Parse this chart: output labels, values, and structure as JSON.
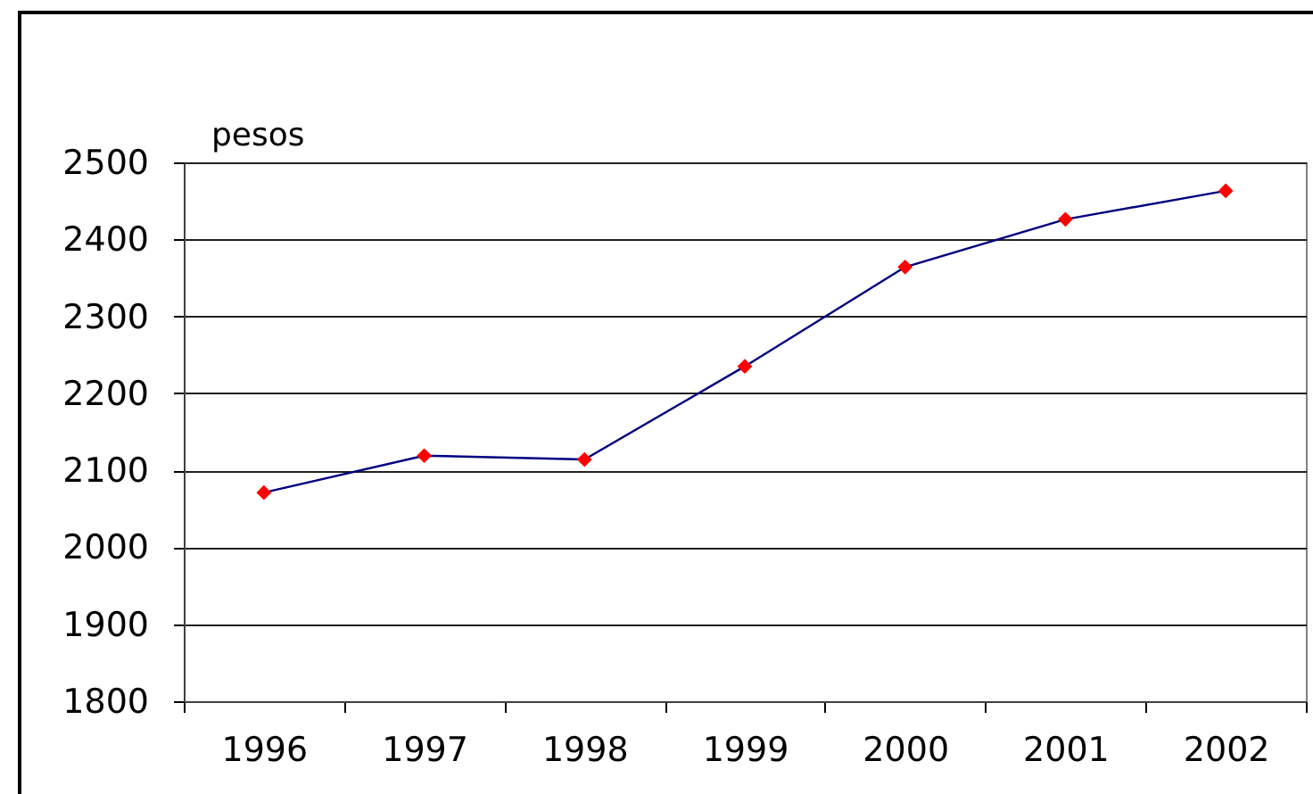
{
  "chart_data": {
    "type": "line",
    "ylabel": "pesos",
    "categories": [
      "1996",
      "1997",
      "1998",
      "1999",
      "2000",
      "2001",
      "2002"
    ],
    "series": [
      {
        "color": "#000080",
        "colors": [
          "#ff0000",
          "#ff0000",
          "#ff0000",
          "#ff0000",
          "#ff0000",
          "#ff0000",
          "#ff0000"
        ],
        "values": [
          2071,
          2119,
          2114,
          2235,
          2364,
          2426,
          2463
        ]
      }
    ],
    "ylim": [
      1800,
      2500
    ],
    "yticks": [
      1800,
      1900,
      2000,
      2100,
      2200,
      2300,
      2400,
      2500
    ],
    "grid": "y",
    "marker": "diamond",
    "line_style": "solid"
  }
}
